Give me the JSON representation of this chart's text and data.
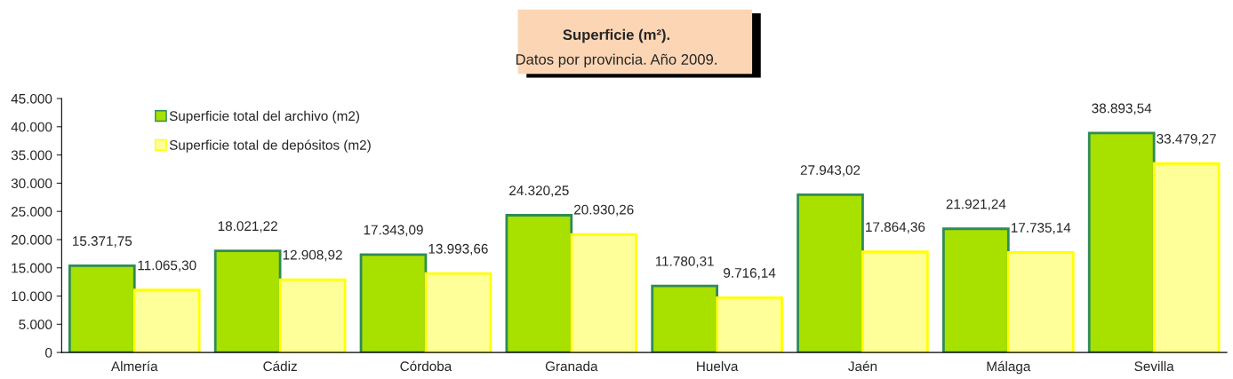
{
  "chart_data": {
    "type": "bar",
    "title": "Superficie (m²).",
    "subtitle": "Datos por provincia. Año 2009.",
    "categories": [
      "Almería",
      "Cádiz",
      "Córdoba",
      "Granada",
      "Huelva",
      "Jaén",
      "Málaga",
      "Sevilla"
    ],
    "series": [
      {
        "name": "Superficie total del archivo (m2)",
        "color": "#a8e000",
        "values": [
          15371.75,
          18021.22,
          17343.09,
          24320.25,
          11780.31,
          27943.02,
          21921.24,
          38893.54
        ],
        "value_labels": [
          "15.371,75",
          "18.021,22",
          "17.343,09",
          "24.320,25",
          "11.780,31",
          "27.943,02",
          "21.921,24",
          "38.893,54"
        ]
      },
      {
        "name": "Superficie total de depósitos (m2)",
        "color": "#ffff99",
        "values": [
          11065.3,
          12908.92,
          13993.66,
          20930.26,
          9716.14,
          17864.36,
          17735.14,
          33479.27
        ],
        "value_labels": [
          "11.065,30",
          "12.908,92",
          "13.993,66",
          "20.930,26",
          "9.716,14",
          "17.864,36",
          "17.735,14",
          "33.479,27"
        ]
      }
    ],
    "ylim": [
      0,
      45000
    ],
    "yticks": [
      {
        "value": 0,
        "label": "0"
      },
      {
        "value": 5000,
        "label": "5.000"
      },
      {
        "value": 10000,
        "label": "10.000"
      },
      {
        "value": 15000,
        "label": "15.000"
      },
      {
        "value": 20000,
        "label": "20.000"
      },
      {
        "value": 25000,
        "label": "25.000"
      },
      {
        "value": 30000,
        "label": "30.000"
      },
      {
        "value": 35000,
        "label": "35.000"
      },
      {
        "value": 40000,
        "label": "40.000"
      },
      {
        "value": 45000,
        "label": "45.000"
      }
    ],
    "grid": false,
    "legend": "top left"
  }
}
